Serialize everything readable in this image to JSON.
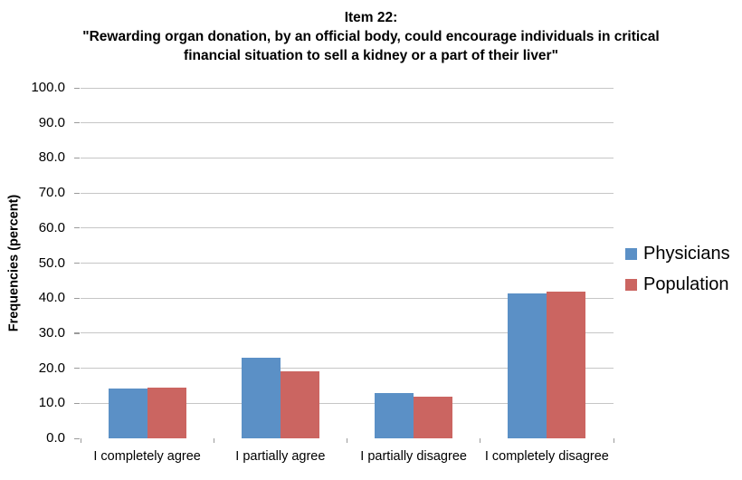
{
  "chart_data": {
    "type": "bar",
    "title_lines": [
      "Item 22:",
      "\"Rewarding organ donation, by an official body, could encourage individuals in critical",
      "financial situation to sell a kidney or a part of their liver\""
    ],
    "ylabel": "Frequencies (percent)",
    "xlabel": "",
    "categories": [
      "I completely agree",
      "I partially agree",
      "I partially disagree",
      "I completely disagree"
    ],
    "series": [
      {
        "name": "Physicians",
        "color": "#5B90C6",
        "values": [
          14.3,
          23.0,
          12.9,
          41.3
        ]
      },
      {
        "name": "Population",
        "color": "#CB6561",
        "values": [
          14.6,
          19.0,
          11.9,
          41.9
        ]
      }
    ],
    "ylim": [
      0,
      100
    ],
    "ytick_step": 10,
    "ytick_decimals": 1,
    "grid": true,
    "legend_position": "right"
  },
  "colors": {
    "gridline": "#C6C6C6",
    "axis": "#9A9A9A",
    "text": "#000000",
    "background": "#FFFFFF"
  }
}
